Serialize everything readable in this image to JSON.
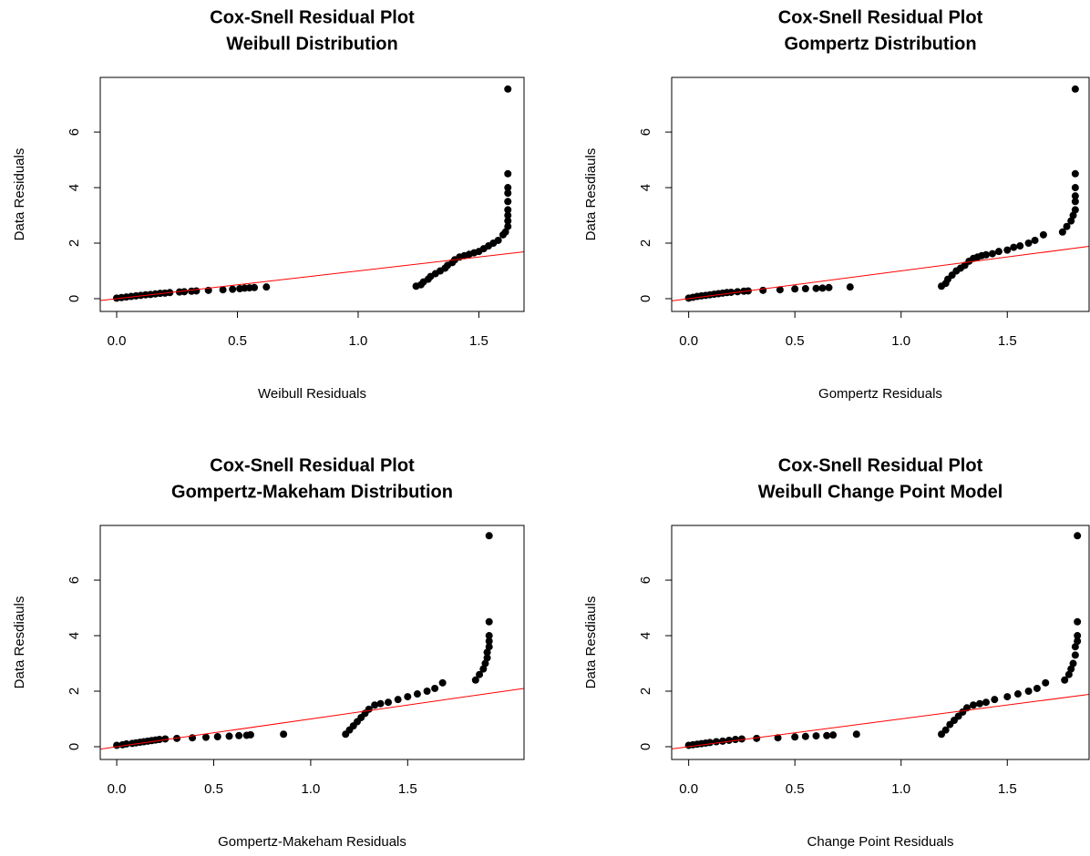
{
  "chart_data": [
    {
      "type": "scatter",
      "title": "Cox-Snell Residual Plot",
      "subtitle": "Weibull Distribution",
      "x_label": "Weibull Residuals",
      "y_label": "Data Residuals",
      "color": "#000000",
      "x": [
        0,
        0.02,
        0.04,
        0.06,
        0.08,
        0.1,
        0.12,
        0.14,
        0.16,
        0.18,
        0.2,
        0.22,
        0.26,
        0.28,
        0.31,
        0.33,
        0.38,
        0.44,
        0.48,
        0.51,
        0.53,
        0.55,
        0.57,
        0.62,
        1.24,
        1.26,
        1.27,
        1.29,
        1.3,
        1.32,
        1.34,
        1.36,
        1.37,
        1.39,
        1.4,
        1.42,
        1.44,
        1.46,
        1.48,
        1.5,
        1.52,
        1.54,
        1.56,
        1.58,
        1.6,
        1.61,
        1.62,
        1.62,
        1.62,
        1.62,
        1.62,
        1.62,
        1.62,
        1.62,
        1.62
      ],
      "y": [
        0.02,
        0.04,
        0.06,
        0.08,
        0.1,
        0.12,
        0.14,
        0.15,
        0.17,
        0.19,
        0.2,
        0.22,
        0.24,
        0.25,
        0.27,
        0.28,
        0.3,
        0.32,
        0.34,
        0.36,
        0.38,
        0.39,
        0.4,
        0.42,
        0.45,
        0.5,
        0.6,
        0.7,
        0.8,
        0.9,
        1.0,
        1.1,
        1.2,
        1.3,
        1.4,
        1.5,
        1.55,
        1.6,
        1.65,
        1.7,
        1.8,
        1.9,
        2.0,
        2.1,
        2.3,
        2.4,
        2.6,
        2.8,
        3.0,
        3.2,
        3.5,
        3.8,
        4.0,
        4.5,
        7.55
      ],
      "xlim": [
        -0.068,
        1.687
      ],
      "ylim": [
        -0.46,
        7.97
      ],
      "xticks": [
        {
          "value": 0,
          "label": "0.0"
        },
        0.5,
        {
          "value": 1,
          "label": "1.0"
        },
        1.5
      ],
      "yticks": [
        0,
        2,
        4,
        6
      ],
      "reference_line": {
        "slope": 1,
        "intercept": 0,
        "color": "#ff0000"
      }
    },
    {
      "type": "scatter",
      "title": "Cox-Snell Residual Plot",
      "subtitle": "Gompertz Distribution",
      "x_label": "Gompertz Residuals",
      "y_label": "Data Resdiauls",
      "color": "#000000",
      "x": [
        0,
        0.02,
        0.04,
        0.06,
        0.08,
        0.1,
        0.12,
        0.14,
        0.16,
        0.18,
        0.2,
        0.23,
        0.26,
        0.28,
        0.35,
        0.43,
        0.5,
        0.55,
        0.6,
        0.63,
        0.66,
        0.76,
        1.19,
        1.21,
        1.22,
        1.24,
        1.26,
        1.28,
        1.3,
        1.32,
        1.34,
        1.36,
        1.38,
        1.4,
        1.43,
        1.46,
        1.5,
        1.53,
        1.56,
        1.6,
        1.63,
        1.67,
        1.76,
        1.78,
        1.8,
        1.81,
        1.82,
        1.82,
        1.82,
        1.82,
        1.82,
        1.82
      ],
      "y": [
        0.02,
        0.05,
        0.08,
        0.1,
        0.12,
        0.14,
        0.16,
        0.18,
        0.2,
        0.22,
        0.23,
        0.25,
        0.27,
        0.28,
        0.3,
        0.32,
        0.35,
        0.36,
        0.37,
        0.38,
        0.4,
        0.42,
        0.45,
        0.55,
        0.7,
        0.85,
        1.0,
        1.1,
        1.2,
        1.35,
        1.45,
        1.5,
        1.55,
        1.58,
        1.62,
        1.7,
        1.75,
        1.85,
        1.9,
        2.0,
        2.1,
        2.3,
        2.4,
        2.6,
        2.8,
        3.0,
        3.2,
        3.5,
        3.7,
        4.0,
        4.5,
        7.55
      ],
      "xlim": [
        -0.08,
        1.885
      ],
      "ylim": [
        -0.46,
        7.97
      ],
      "xticks": [
        {
          "value": 0,
          "label": "0.0"
        },
        0.5,
        {
          "value": 1,
          "label": "1.0"
        },
        1.5
      ],
      "yticks": [
        0,
        2,
        4,
        6
      ],
      "reference_line": {
        "slope": 1,
        "intercept": 0,
        "color": "#ff0000"
      }
    },
    {
      "type": "scatter",
      "title": "Cox-Snell Residual Plot",
      "subtitle": "Gompertz-Makeham Distribution",
      "x_label": "Gompertz-Makeham Residuals",
      "y_label": "Data Resdiauls",
      "color": "#000000",
      "x": [
        0,
        0.03,
        0.05,
        0.08,
        0.1,
        0.12,
        0.14,
        0.16,
        0.18,
        0.2,
        0.22,
        0.25,
        0.31,
        0.39,
        0.46,
        0.52,
        0.58,
        0.63,
        0.67,
        0.69,
        0.86,
        1.18,
        1.2,
        1.22,
        1.24,
        1.26,
        1.28,
        1.3,
        1.33,
        1.36,
        1.4,
        1.45,
        1.5,
        1.55,
        1.6,
        1.64,
        1.68,
        1.85,
        1.87,
        1.89,
        1.9,
        1.91,
        1.91,
        1.92,
        1.92,
        1.92,
        1.92,
        1.92
      ],
      "y": [
        0.05,
        0.07,
        0.1,
        0.12,
        0.14,
        0.16,
        0.18,
        0.2,
        0.22,
        0.24,
        0.26,
        0.28,
        0.3,
        0.32,
        0.34,
        0.36,
        0.38,
        0.4,
        0.41,
        0.43,
        0.45,
        0.45,
        0.6,
        0.75,
        0.9,
        1.05,
        1.2,
        1.35,
        1.5,
        1.55,
        1.6,
        1.7,
        1.8,
        1.9,
        2.0,
        2.1,
        2.3,
        2.4,
        2.6,
        2.8,
        3.0,
        3.2,
        3.4,
        3.6,
        3.8,
        4.0,
        4.5,
        7.6
      ],
      "xlim": [
        -0.085,
        2.1
      ],
      "ylim": [
        -0.46,
        7.97
      ],
      "xticks": [
        {
          "value": 0,
          "label": "0.0"
        },
        0.5,
        {
          "value": 1,
          "label": "1.0"
        },
        1.5
      ],
      "yticks": [
        0,
        2,
        4,
        6
      ],
      "reference_line": {
        "slope": 1,
        "intercept": 0,
        "color": "#ff0000"
      }
    },
    {
      "type": "scatter",
      "title": "Cox-Snell Residual Plot",
      "subtitle": "Weibull Change Point Model",
      "x_label": "Change Point Residuals",
      "y_label": "Data Resdiauls",
      "color": "#000000",
      "x": [
        0,
        0.02,
        0.04,
        0.06,
        0.08,
        0.1,
        0.13,
        0.16,
        0.19,
        0.22,
        0.25,
        0.32,
        0.42,
        0.5,
        0.55,
        0.6,
        0.65,
        0.68,
        0.79,
        1.19,
        1.21,
        1.23,
        1.25,
        1.27,
        1.29,
        1.31,
        1.34,
        1.37,
        1.4,
        1.44,
        1.5,
        1.55,
        1.6,
        1.64,
        1.68,
        1.77,
        1.79,
        1.8,
        1.81,
        1.82,
        1.82,
        1.83,
        1.83,
        1.83,
        1.83
      ],
      "y": [
        0.05,
        0.07,
        0.09,
        0.11,
        0.13,
        0.15,
        0.18,
        0.2,
        0.23,
        0.26,
        0.28,
        0.3,
        0.32,
        0.35,
        0.37,
        0.39,
        0.4,
        0.42,
        0.45,
        0.45,
        0.6,
        0.8,
        0.95,
        1.1,
        1.25,
        1.4,
        1.5,
        1.55,
        1.6,
        1.7,
        1.8,
        1.9,
        2.0,
        2.1,
        2.3,
        2.4,
        2.6,
        2.8,
        3.0,
        3.3,
        3.6,
        3.8,
        4.0,
        4.5,
        7.6
      ],
      "xlim": [
        -0.08,
        1.885
      ],
      "ylim": [
        -0.46,
        7.97
      ],
      "xticks": [
        {
          "value": 0,
          "label": "0.0"
        },
        0.5,
        {
          "value": 1,
          "label": "1.0"
        },
        1.5
      ],
      "yticks": [
        0,
        2,
        4,
        6
      ],
      "reference_line": {
        "slope": 1,
        "intercept": 0,
        "color": "#ff0000"
      }
    }
  ]
}
